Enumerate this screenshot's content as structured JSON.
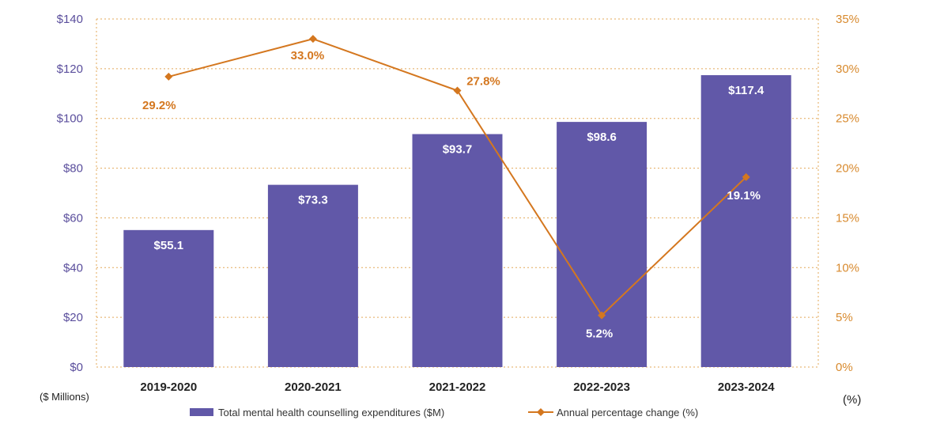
{
  "chart_data": {
    "type": "bar",
    "categories": [
      "2019-2020",
      "2020-2021",
      "2021-2022",
      "2022-2023",
      "2023-2024"
    ],
    "series": [
      {
        "name": "Total mental health counselling expenditures ($M)",
        "type": "bar",
        "axis": "left",
        "values": [
          55.1,
          73.3,
          93.7,
          98.6,
          117.4
        ],
        "labels": [
          "$55.1",
          "$73.3",
          "$93.7",
          "$98.6",
          "$117.4"
        ]
      },
      {
        "name": "Annual percentage change (%)",
        "type": "line",
        "axis": "right",
        "values": [
          29.2,
          33.0,
          27.8,
          5.2,
          19.1
        ],
        "labels": [
          "29.2%",
          "33.0%",
          "27.8%",
          "5.2%",
          "19.1%"
        ]
      }
    ],
    "left_axis": {
      "label": "($ Millions)",
      "ylim": [
        0,
        140
      ],
      "ticks": [
        0,
        20,
        40,
        60,
        80,
        100,
        120,
        140
      ],
      "tick_labels": [
        "$0",
        "$20",
        "$40",
        "$60",
        "$80",
        "$100",
        "$120",
        "$140"
      ]
    },
    "right_axis": {
      "label": "(%)",
      "ylim": [
        0,
        35
      ],
      "ticks": [
        0,
        5,
        10,
        15,
        20,
        25,
        30,
        35
      ],
      "tick_labels": [
        "0%",
        "5%",
        "10%",
        "15%",
        "20%",
        "25%",
        "30%",
        "35%"
      ]
    },
    "grid": "horizontal dotted",
    "legend_position": "bottom",
    "colors": {
      "bar": "#6158a8",
      "line": "#d4771f",
      "grid": "#e3a95a"
    }
  }
}
